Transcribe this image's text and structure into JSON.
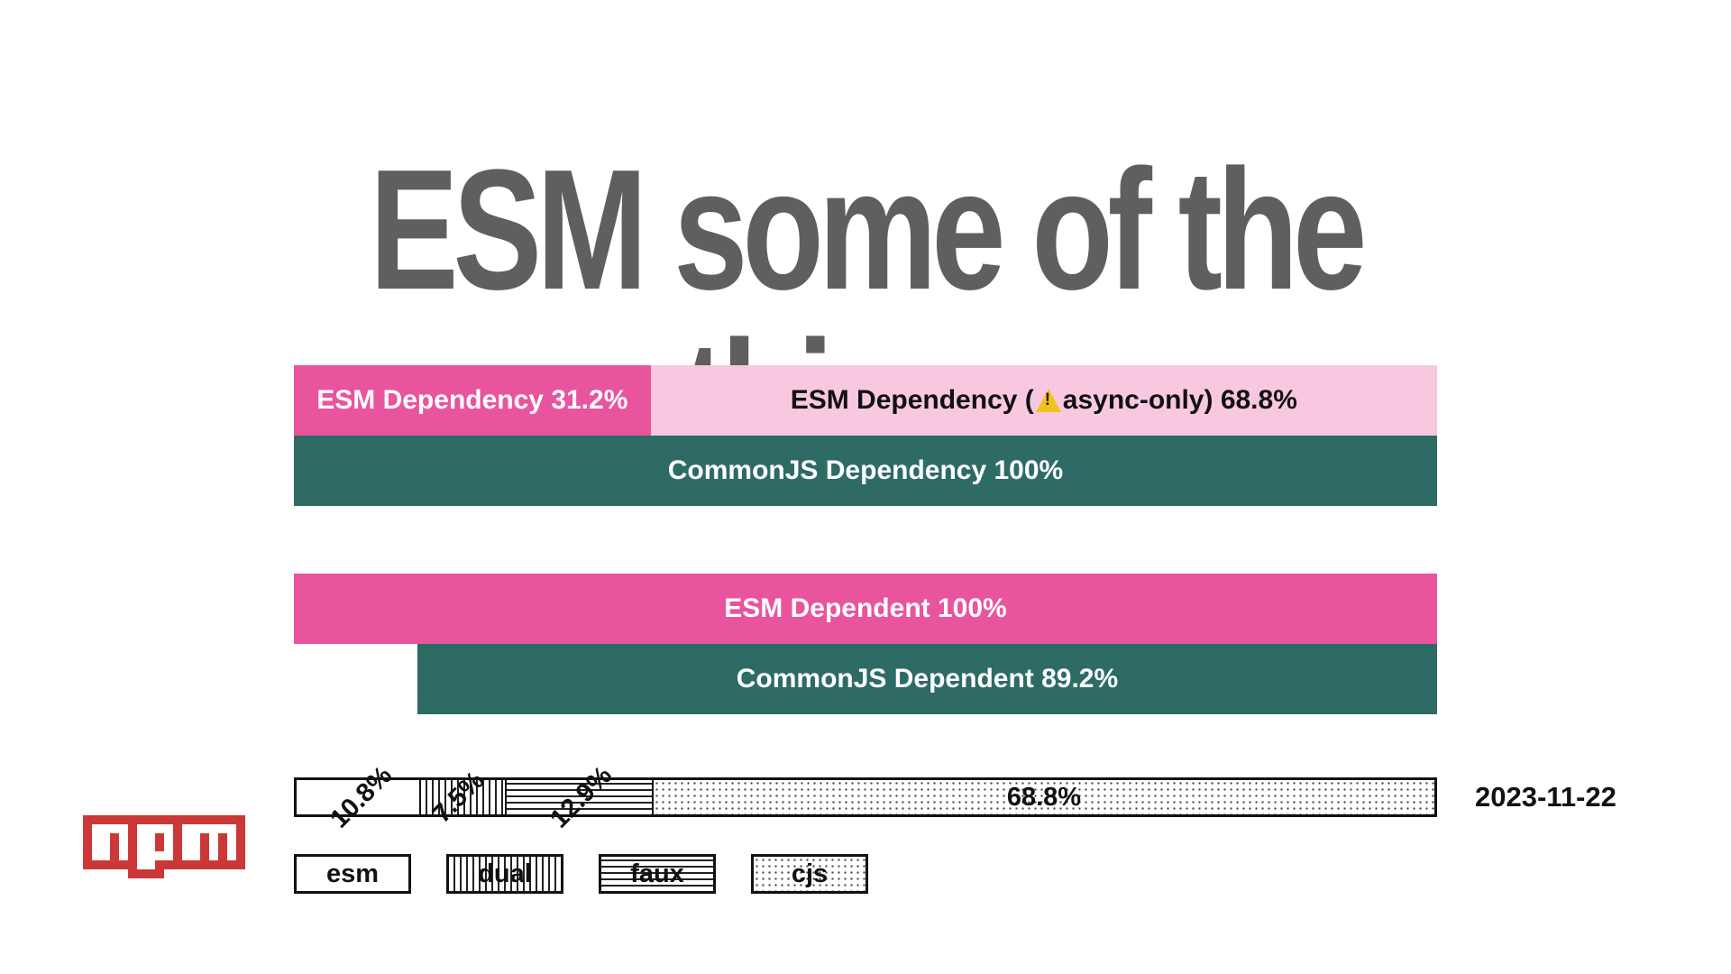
{
  "title": "ESM some of the things",
  "colors": {
    "esm_pink": "#e9549e",
    "esm_light_pink": "#f8c8e0",
    "cjs_teal": "#2d6b64",
    "title_gray": "#5f5f5f",
    "npm_red": "#cb3837"
  },
  "chart_data": [
    {
      "type": "bar",
      "orientation": "horizontal",
      "bars": [
        {
          "label": "ESM Dependency 31.2%",
          "value": 31.2,
          "color": "#e9549e"
        },
        {
          "label": "ESM Dependency (",
          "label_end": " async-only) 68.8%",
          "value": 68.8,
          "icon": "warning-icon",
          "color": "#f8c8e0"
        },
        {
          "label": "CommonJS Dependency 100%",
          "value": 100,
          "color": "#2d6b64"
        }
      ],
      "xlim": [
        0,
        100
      ]
    },
    {
      "type": "bar",
      "orientation": "horizontal",
      "bars": [
        {
          "label": "ESM Dependent 100%",
          "value": 100,
          "color": "#e9549e"
        },
        {
          "label": "CommonJS Dependent 89.2%",
          "value": 89.2,
          "color": "#2d6b64"
        }
      ],
      "xlim": [
        0,
        100
      ]
    },
    {
      "type": "bar",
      "orientation": "horizontal",
      "stacked": true,
      "segments": [
        {
          "name": "esm",
          "value": 10.8,
          "label": "10.8%"
        },
        {
          "name": "dual",
          "value": 7.5,
          "label": "7.5%"
        },
        {
          "name": "faux",
          "value": 12.9,
          "label": "12.9%"
        },
        {
          "name": "cjs",
          "value": 68.8,
          "label": "68.8%"
        }
      ],
      "legend": [
        "esm",
        "dual",
        "faux",
        "cjs"
      ],
      "date": "2023-11-22"
    }
  ]
}
